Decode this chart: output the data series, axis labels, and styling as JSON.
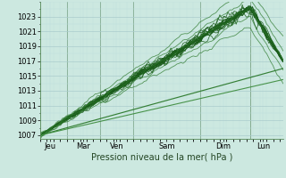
{
  "bg_color": "#cce8e0",
  "grid_color_major": "#aacccc",
  "grid_color_minor": "#bbdddd",
  "line_color_dark": "#1a5c1a",
  "line_color_mid": "#2d7a2d",
  "line_color_light": "#3a8a3a",
  "ylabel_ticks": [
    1007,
    1009,
    1011,
    1013,
    1015,
    1017,
    1019,
    1021,
    1023
  ],
  "ylim": [
    1006.5,
    1025.0
  ],
  "xlim": [
    0,
    7.3
  ],
  "xlabel": "Pression niveau de la mer( hPa )",
  "day_labels": [
    "Jeu",
    "Mar",
    "Ven",
    "Sam",
    "Dim",
    "Lun"
  ],
  "day_positions": [
    0.3,
    1.3,
    2.3,
    3.8,
    5.5,
    6.7
  ],
  "vline_positions": [
    0.8,
    1.8,
    2.8,
    4.8,
    6.3
  ],
  "tick_fontsize": 6.0,
  "xlabel_fontsize": 7.0
}
